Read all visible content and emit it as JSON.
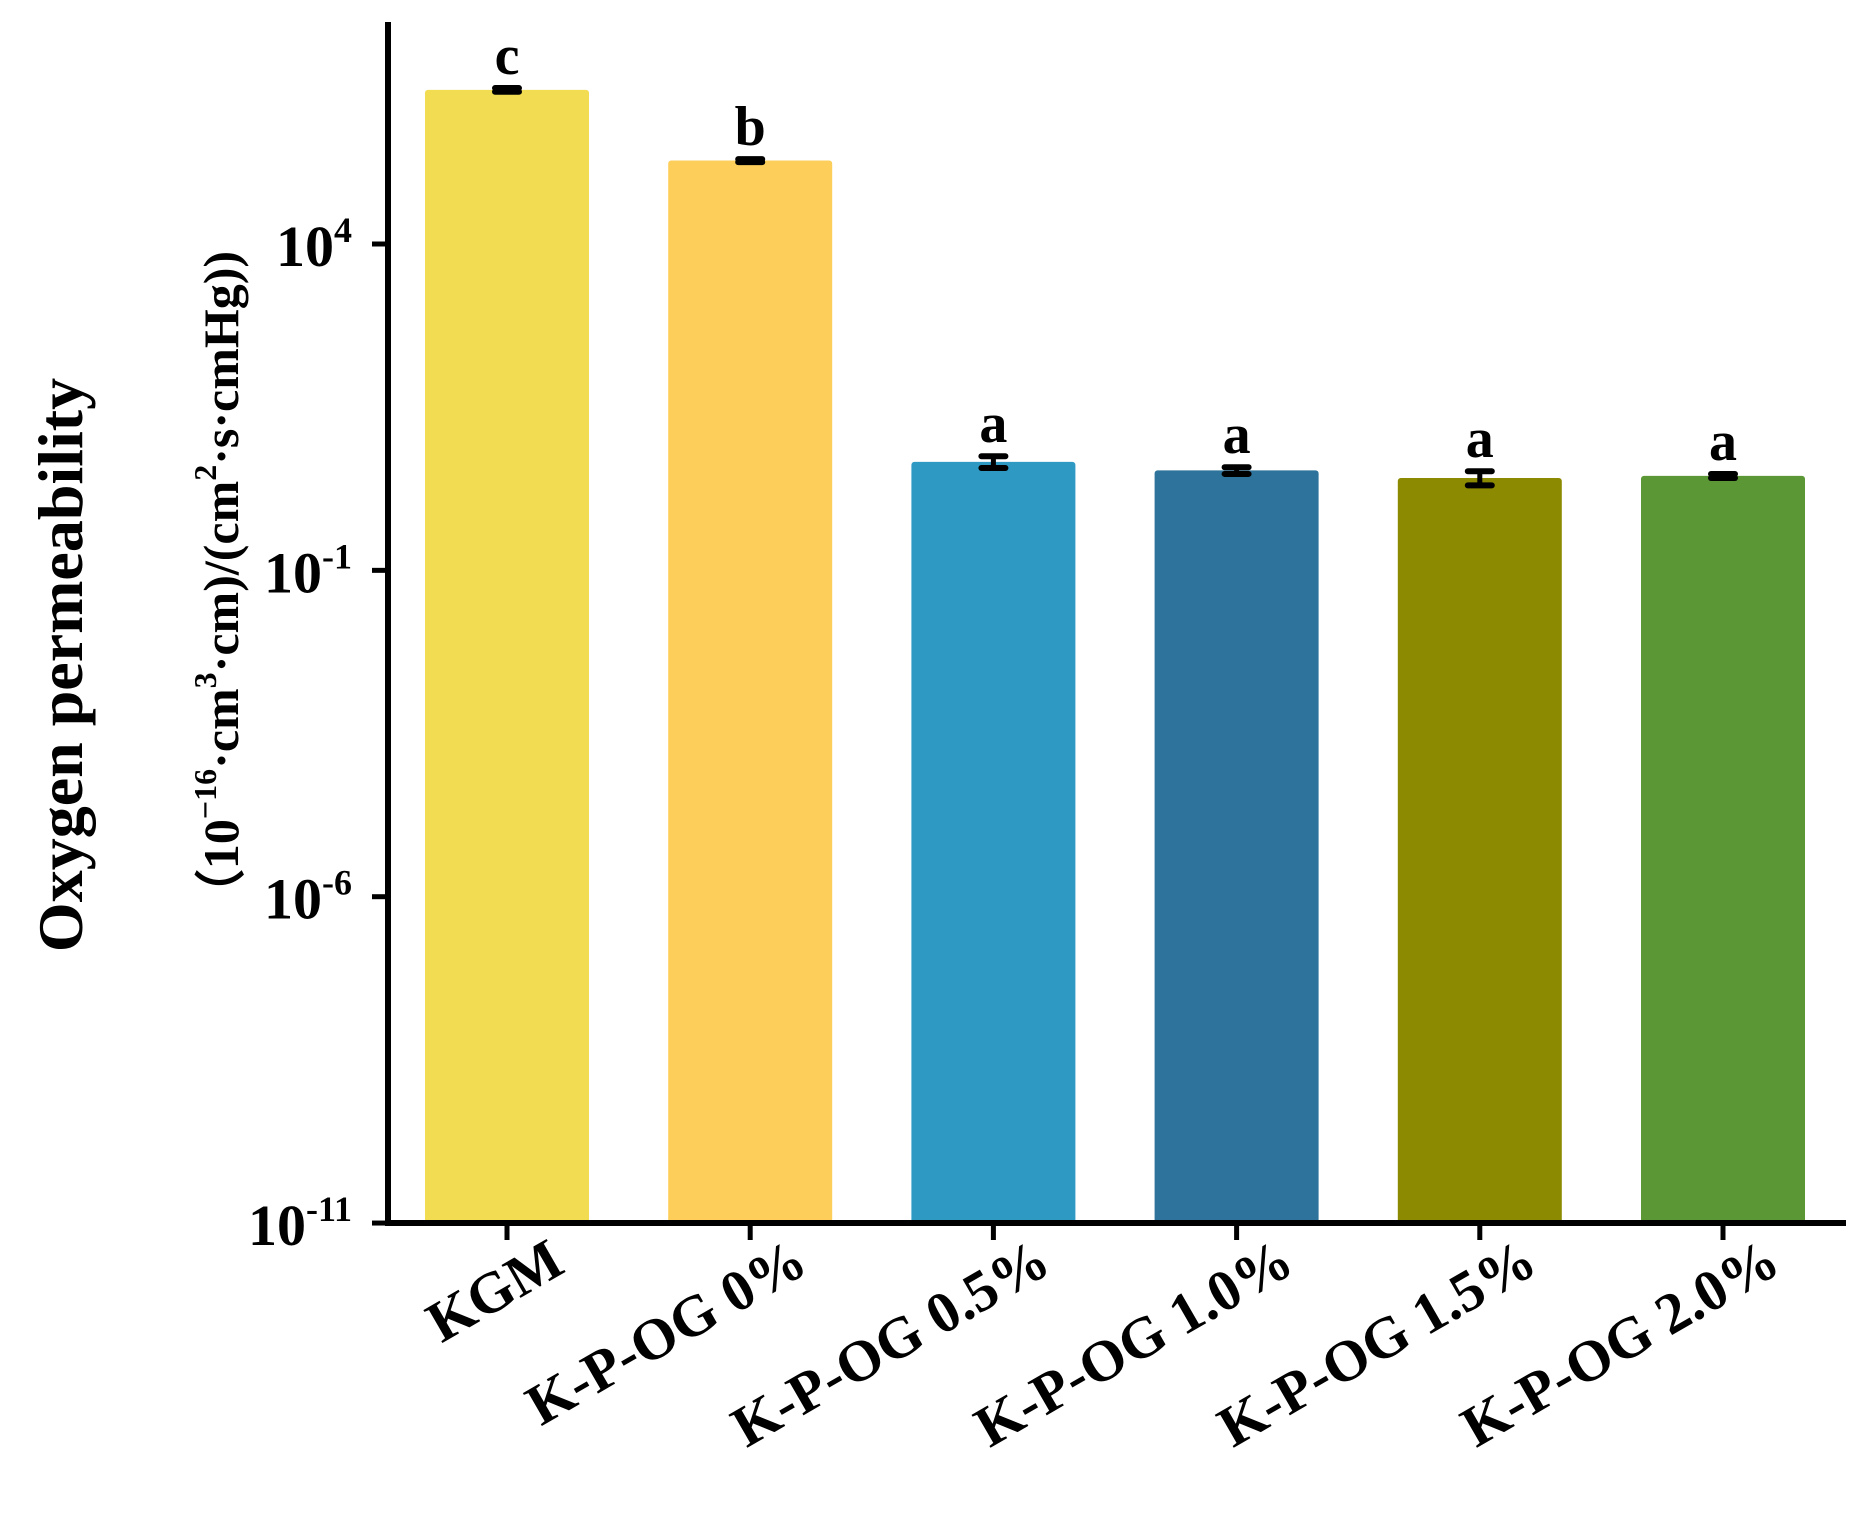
{
  "chart_data": {
    "type": "bar",
    "title": "",
    "xlabel": "",
    "ylabel": "Oxygen permeability",
    "ylabel_units": "(10^-16·cm^3·cm)/(cm^2·s·cmHg)",
    "ylabel_line2_parts": {
      "open": "（10",
      "exp16": "−16",
      "mid1": "·cm",
      "exp3": "3",
      "mid2": "·cm)/(cm",
      "exp2": "2",
      "end": "·s·cmHg))"
    },
    "yscale": "log",
    "ylim": [
      1e-11,
      10000000.0
    ],
    "yticks": [
      {
        "base": "10",
        "exp": "4",
        "value": 10000
      },
      {
        "base": "10",
        "exp": "-1",
        "value": 0.1
      },
      {
        "base": "10",
        "exp": "-6",
        "value": 1e-06
      },
      {
        "base": "10",
        "exp": "-11",
        "value": 1e-11
      }
    ],
    "grid": false,
    "legend": null,
    "categories": [
      "KGM",
      "K-P-OG 0%",
      "K-P-OG 0.5%",
      "K-P-OG 1.0%",
      "K-P-OG 1.5%",
      "K-P-OG 2.0%"
    ],
    "values": [
      2300000,
      190000,
      4.6,
      3.4,
      2.6,
      2.8
    ],
    "error_low": [
      2150000,
      180000,
      3.7,
      3.0,
      2.0,
      2.6
    ],
    "error_high": [
      2450000,
      200000,
      5.6,
      3.8,
      3.3,
      3.0
    ],
    "significance_letters": [
      "c",
      "b",
      "a",
      "a",
      "a",
      "a"
    ],
    "colors": [
      "#F2DC52",
      "#FDCF5A",
      "#2E9AC4",
      "#2D739B",
      "#8C8A00",
      "#5B9735"
    ]
  }
}
